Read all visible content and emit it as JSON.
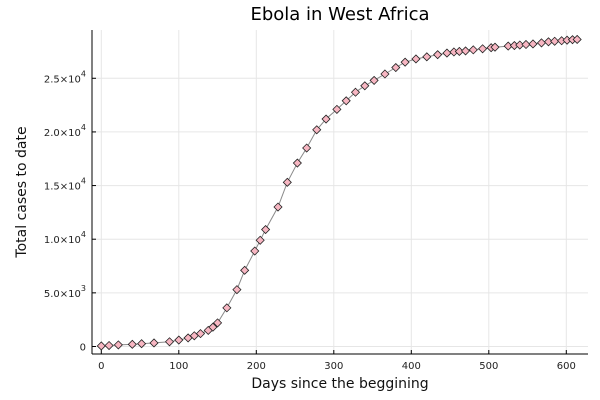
{
  "chart_data": {
    "type": "scatter",
    "title": "Ebola in West Africa",
    "xlabel": "Days since the beggining",
    "ylabel": "Total cases to date",
    "xlim": [
      -12,
      628
    ],
    "ylim": [
      -700,
      29500
    ],
    "grid": true,
    "legend": "none",
    "x_ticks": [
      0,
      100,
      200,
      300,
      400,
      500,
      600
    ],
    "x_tick_labels": [
      "0",
      "100",
      "200",
      "300",
      "400",
      "500",
      "600"
    ],
    "y_ticks": [
      {
        "value": 0,
        "mantissa": "0",
        "exp": ""
      },
      {
        "value": 5000,
        "mantissa": "5.0×10",
        "exp": "3"
      },
      {
        "value": 10000,
        "mantissa": "1.0×10",
        "exp": "4"
      },
      {
        "value": 15000,
        "mantissa": "1.5×10",
        "exp": "4"
      },
      {
        "value": 20000,
        "mantissa": "2.0×10",
        "exp": "4"
      },
      {
        "value": 25000,
        "mantissa": "2.5×10",
        "exp": "4"
      }
    ],
    "colors": {
      "marker_fill": "#f7b6c2",
      "marker_stroke": "#222222",
      "line": "#8a8a8a",
      "grid": "#e6e6e6",
      "axis": "#000000"
    },
    "series": [
      {
        "name": "Total cases",
        "x": [
          0,
          10,
          22,
          40,
          52,
          68,
          88,
          100,
          112,
          120,
          128,
          138,
          144,
          150,
          162,
          175,
          185,
          198,
          205,
          212,
          228,
          240,
          253,
          265,
          278,
          290,
          304,
          316,
          328,
          340,
          352,
          366,
          380,
          392,
          406,
          420,
          434,
          446,
          455,
          462,
          470,
          480,
          492,
          503,
          508,
          525,
          533,
          540,
          548,
          557,
          568,
          577,
          585,
          594,
          601,
          608,
          614
        ],
        "y": [
          50,
          90,
          150,
          200,
          260,
          330,
          440,
          600,
          800,
          1000,
          1200,
          1500,
          1800,
          2200,
          3600,
          5300,
          7100,
          8900,
          9900,
          10900,
          13000,
          15300,
          17100,
          18500,
          20200,
          21200,
          22100,
          22900,
          23700,
          24300,
          24800,
          25400,
          26000,
          26500,
          26800,
          27000,
          27200,
          27350,
          27450,
          27500,
          27550,
          27650,
          27750,
          27850,
          27900,
          28000,
          28050,
          28100,
          28150,
          28200,
          28300,
          28400,
          28450,
          28500,
          28550,
          28600,
          28620
        ]
      }
    ]
  }
}
